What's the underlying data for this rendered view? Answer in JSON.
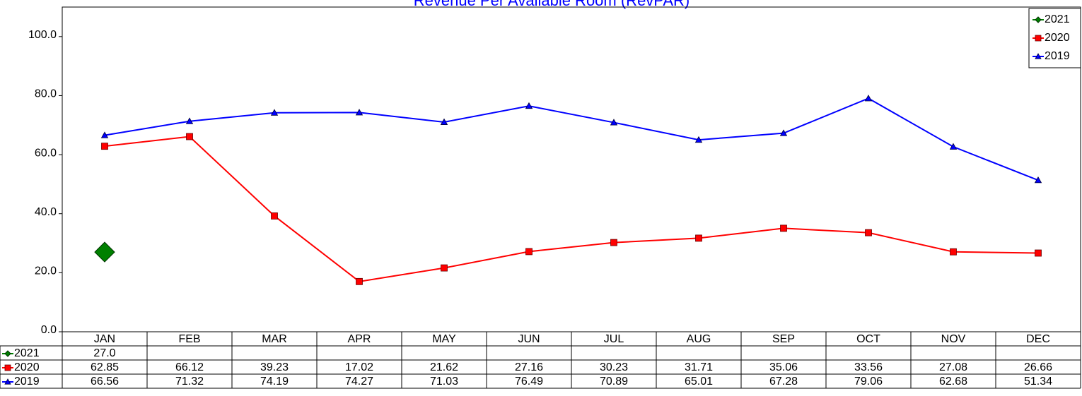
{
  "chart_data": {
    "type": "line",
    "title": "Revenue Per Available Room (RevPAR)",
    "categories": [
      "JAN",
      "FEB",
      "MAR",
      "APR",
      "MAY",
      "JUN",
      "JUL",
      "AUG",
      "SEP",
      "OCT",
      "NOV",
      "DEC"
    ],
    "series": [
      {
        "name": "2021",
        "color": "#008000",
        "marker": "diamond",
        "values": [
          27,
          null,
          null,
          null,
          null,
          null,
          null,
          null,
          null,
          null,
          null,
          null
        ],
        "value_labels": [
          "27.0",
          null,
          null,
          null,
          null,
          null,
          null,
          null,
          null,
          null,
          null,
          null
        ]
      },
      {
        "name": "2020",
        "color": "#ff0000",
        "marker": "square",
        "values": [
          62.85,
          66.12,
          39.23,
          17.02,
          21.62,
          27.16,
          30.23,
          31.71,
          35.06,
          33.56,
          27.08,
          26.66
        ]
      },
      {
        "name": "2019",
        "color": "#0000ff",
        "marker": "triangle",
        "values": [
          66.56,
          71.32,
          74.19,
          74.27,
          71.03,
          76.49,
          70.89,
          65.01,
          67.28,
          79.06,
          62.68,
          51.34
        ]
      }
    ],
    "ylim": [
      0,
      110
    ],
    "yticks": [
      {
        "value": 0,
        "label": "0.0"
      },
      {
        "value": 20,
        "label": "20.0"
      },
      {
        "value": 40,
        "label": "40.0"
      },
      {
        "value": 60,
        "label": "60.0"
      },
      {
        "value": 80,
        "label": "80.0"
      },
      {
        "value": 100,
        "label": "100.0"
      }
    ],
    "legend": "top-right",
    "grid": false,
    "data_table": true
  }
}
